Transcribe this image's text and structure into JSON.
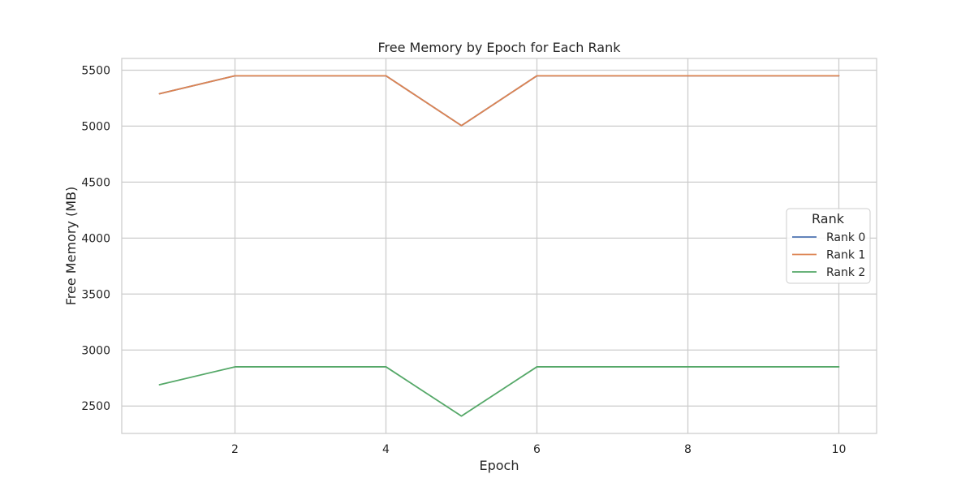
{
  "chart_data": {
    "type": "line",
    "title": "Free Memory by Epoch for Each Rank",
    "xlabel": "Epoch",
    "ylabel": "Free Memory (MB)",
    "x": [
      1,
      2,
      3,
      4,
      5,
      6,
      7,
      8,
      9,
      10
    ],
    "xlim": [
      0.5,
      10.5
    ],
    "ylim": [
      2255,
      5605
    ],
    "xticks": [
      2,
      4,
      6,
      8,
      10
    ],
    "yticks": [
      2500,
      3000,
      3500,
      4000,
      4500,
      5000,
      5500
    ],
    "grid": true,
    "legend": {
      "title": "Rank",
      "placement": "center-right"
    },
    "series": [
      {
        "name": "Rank 0",
        "color": "#4c72b0",
        "values": [
          5290,
          5450,
          5450,
          5450,
          5005,
          5450,
          5450,
          5450,
          5450,
          5450
        ]
      },
      {
        "name": "Rank 1",
        "color": "#dd8452",
        "values": [
          5290,
          5450,
          5450,
          5450,
          5005,
          5450,
          5450,
          5450,
          5450,
          5450
        ]
      },
      {
        "name": "Rank 2",
        "color": "#55a868",
        "values": [
          2690,
          2850,
          2850,
          2850,
          2410,
          2850,
          2850,
          2850,
          2850,
          2850
        ]
      }
    ]
  }
}
